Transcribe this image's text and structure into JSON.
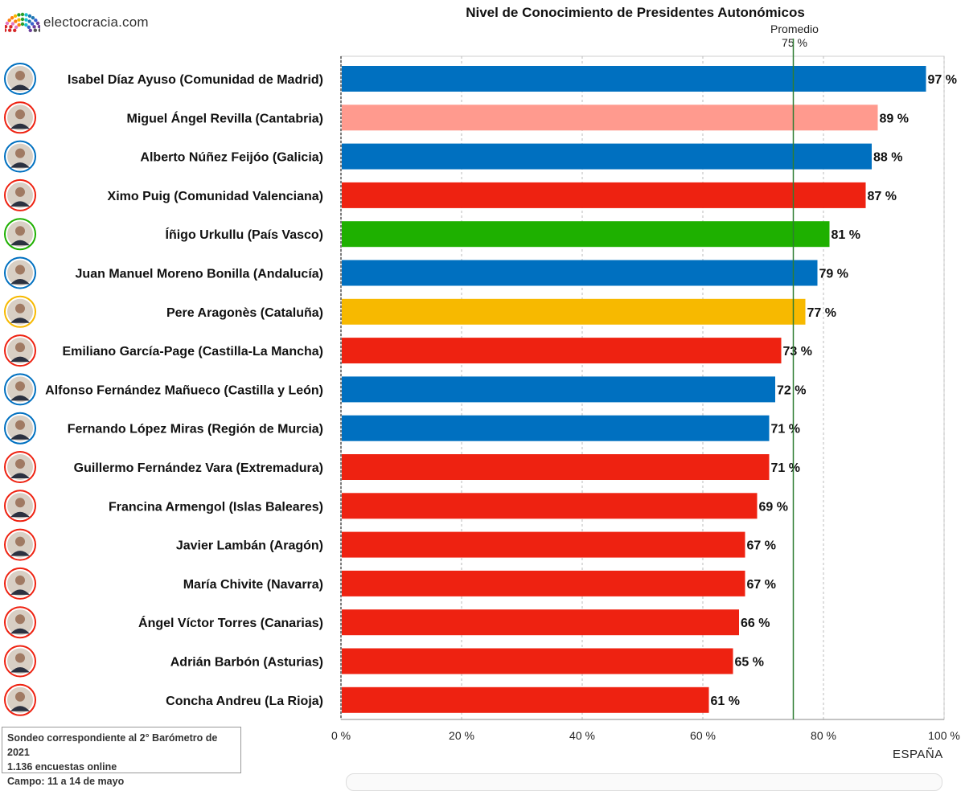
{
  "brand": {
    "name": "electocracia.com",
    "icon": "parliament-hemicycle-icon"
  },
  "chart_data": {
    "type": "bar",
    "orientation": "horizontal",
    "title": "Nivel de Conocimiento de Presidentes Autonómicos",
    "reference_line": {
      "label": "Promedio",
      "value": 75,
      "value_label": "75 %",
      "color": "#2e7d32"
    },
    "xlim": [
      0,
      100
    ],
    "ticks": [
      0,
      20,
      40,
      60,
      80,
      100
    ],
    "tick_labels": [
      "0 %",
      "20 %",
      "40 %",
      "60 %",
      "80 %",
      "100 %"
    ],
    "grid": true,
    "categories": [
      "Isabel Díaz Ayuso (Comunidad de Madrid)",
      "Miguel Ángel Revilla (Cantabria)",
      "Alberto Núñez Feijóo (Galicia)",
      "Ximo Puig (Comunidad Valenciana)",
      "Íñigo Urkullu (País Vasco)",
      "Juan Manuel Moreno Bonilla (Andalucía)",
      "Pere Aragonès (Cataluña)",
      "Emiliano García-Page (Castilla-La Mancha)",
      "Alfonso Fernández Mañueco (Castilla y León)",
      "Fernando López Miras (Región de Murcia)",
      "Guillermo Fernández Vara (Extremadura)",
      "Francina Armengol (Islas Baleares)",
      "Javier Lambán (Aragón)",
      "María Chivite (Navarra)",
      "Ángel Víctor Torres (Canarias)",
      "Adrián Barbón (Asturias)",
      "Concha Andreu (La Rioja)"
    ],
    "values": [
      97,
      89,
      88,
      87,
      81,
      79,
      77,
      73,
      72,
      71,
      71,
      69,
      67,
      67,
      66,
      65,
      61
    ],
    "value_labels": [
      "97 %",
      "89 %",
      "88 %",
      "87 %",
      "81 %",
      "79 %",
      "77 %",
      "73 %",
      "72 %",
      "71 %",
      "71 %",
      "69 %",
      "67 %",
      "67 %",
      "66 %",
      "65 %",
      "61 %"
    ],
    "bar_colors": [
      "#0070c0",
      "#ff9a8e",
      "#0070c0",
      "#ee2211",
      "#1eb000",
      "#0070c0",
      "#f7b900",
      "#ee2211",
      "#0070c0",
      "#0070c0",
      "#ee2211",
      "#ee2211",
      "#ee2211",
      "#ee2211",
      "#ee2211",
      "#ee2211",
      "#ee2211"
    ],
    "avatar_ring_colors": [
      "#0070c0",
      "#ee2211",
      "#0070c0",
      "#ee2211",
      "#1eb000",
      "#0070c0",
      "#f7b900",
      "#ee2211",
      "#0070c0",
      "#0070c0",
      "#ee2211",
      "#ee2211",
      "#ee2211",
      "#ee2211",
      "#ee2211",
      "#ee2211",
      "#ee2211"
    ],
    "region": "ESPAÑA"
  },
  "note": {
    "line1": "Sondeo correspondiente al 2° Barómetro de 2021",
    "line2": "1.136 encuestas online",
    "line3": "Campo: 11 a 14 de mayo"
  }
}
